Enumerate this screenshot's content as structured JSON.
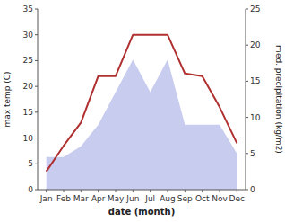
{
  "chart_data": {
    "type": "line",
    "categories": [
      "Jan",
      "Feb",
      "Mar",
      "Apr",
      "May",
      "Jun",
      "Jul",
      "Aug",
      "Sep",
      "Oct",
      "Nov",
      "Dec"
    ],
    "xlabel": "date (month)",
    "ylabel": "max temp (C)",
    "y2label": "med. precipitation (kg/m2)",
    "ylim": [
      0,
      35
    ],
    "yticks": [
      0,
      5,
      10,
      15,
      20,
      25,
      30,
      35
    ],
    "y2lim": [
      0,
      25
    ],
    "y2ticks": [
      0,
      5,
      10,
      15,
      20,
      25
    ],
    "grid": false,
    "series": [
      {
        "type": "area",
        "axis": "y2",
        "color": "#c8ccee",
        "values": [
          4.5,
          4.5,
          6.0,
          9.0,
          13.5,
          18.0,
          13.5,
          18.0,
          9.0,
          9.0,
          9.0,
          5.0
        ]
      },
      {
        "type": "line",
        "color": "#b03030",
        "values": [
          3.5,
          8.5,
          13.0,
          22.0,
          22.0,
          30.0,
          30.0,
          30.0,
          22.5,
          22.0,
          16.0,
          9.0
        ]
      }
    ]
  }
}
